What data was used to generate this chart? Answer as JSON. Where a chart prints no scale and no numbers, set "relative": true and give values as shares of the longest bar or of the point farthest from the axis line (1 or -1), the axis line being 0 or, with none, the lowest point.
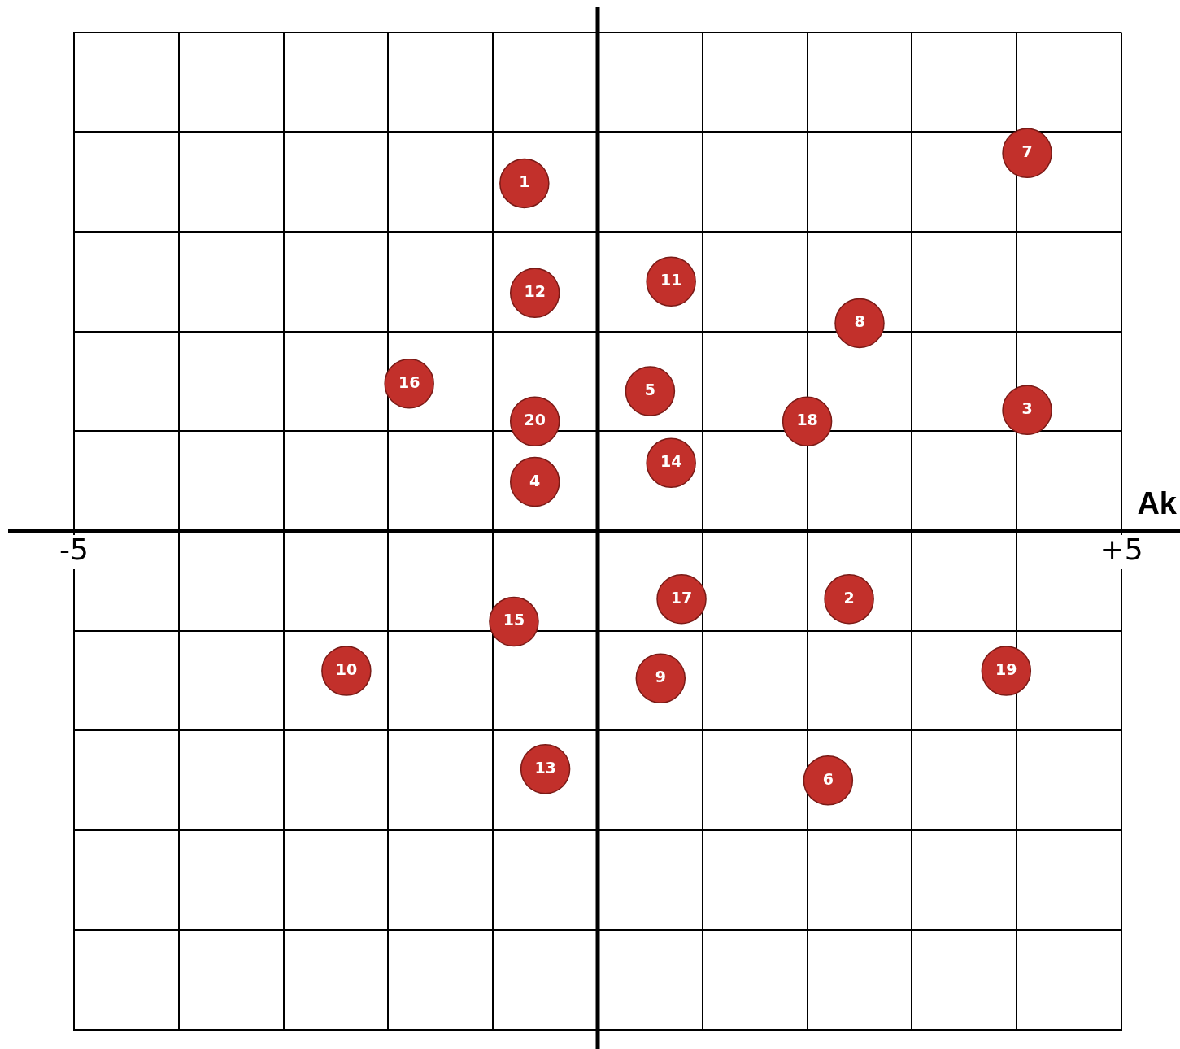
{
  "chart_data": {
    "type": "scatter",
    "xlabel": "Ak",
    "relative": true,
    "xlim": [
      -5,
      5
    ],
    "xticks": [
      {
        "value": -5,
        "label": "-5"
      },
      {
        "value": -4,
        "label": null
      },
      {
        "value": -3,
        "label": null
      },
      {
        "value": -2,
        "label": null
      },
      {
        "value": -1,
        "label": null
      },
      {
        "value": 0,
        "label": null
      },
      {
        "value": 1,
        "label": null
      },
      {
        "value": 2,
        "label": null
      },
      {
        "value": 3,
        "label": null
      },
      {
        "value": 4,
        "label": null
      },
      {
        "value": 5,
        "label": "+5"
      }
    ],
    "tick_labels": "x",
    "grid": true,
    "legend": false,
    "marker": "circle",
    "series": [
      {
        "color": "#c2302b",
        "x": [
          -0.7,
          2.4,
          4.1,
          -0.6,
          0.5,
          2.2,
          4.1,
          2.5,
          0.6,
          -2.4,
          0.7,
          -0.6,
          -0.5,
          0.7,
          -0.8,
          -1.8,
          0.8,
          2.0,
          3.9,
          -0.6
        ],
        "values": [
          0.92,
          -0.18,
          0.32,
          0.13,
          0.37,
          -0.66,
          1,
          0.55,
          -0.39,
          -0.37,
          0.66,
          0.63,
          -0.63,
          0.18,
          -0.24,
          0.39,
          -0.18,
          0.29,
          -0.37,
          0.29
        ]
      }
    ],
    "annotations": [
      {
        "text": "1",
        "x": -0.7,
        "y": 0.92
      },
      {
        "text": "2",
        "x": 2.4,
        "y": -0.18
      },
      {
        "text": "3",
        "x": 4.1,
        "y": 0.32
      },
      {
        "text": "4",
        "x": -0.6,
        "y": 0.13
      },
      {
        "text": "5",
        "x": 0.5,
        "y": 0.37
      },
      {
        "text": "6",
        "x": 2.2,
        "y": -0.66
      },
      {
        "text": "7",
        "x": 4.1,
        "y": 1
      },
      {
        "text": "8",
        "x": 2.5,
        "y": 0.55
      },
      {
        "text": "9",
        "x": 0.6,
        "y": -0.39
      },
      {
        "text": "10",
        "x": -2.4,
        "y": -0.37
      },
      {
        "text": "11",
        "x": 0.7,
        "y": 0.66
      },
      {
        "text": "12",
        "x": -0.6,
        "y": 0.63
      },
      {
        "text": "13",
        "x": -0.5,
        "y": -0.63
      },
      {
        "text": "14",
        "x": 0.7,
        "y": 0.18
      },
      {
        "text": "15",
        "x": -0.8,
        "y": -0.24
      },
      {
        "text": "16",
        "x": -1.8,
        "y": 0.39
      },
      {
        "text": "17",
        "x": 0.8,
        "y": -0.18
      },
      {
        "text": "18",
        "x": 2.0,
        "y": 0.29
      },
      {
        "text": "19",
        "x": 3.9,
        "y": -0.37
      },
      {
        "text": "20",
        "x": -0.6,
        "y": 0.29
      }
    ]
  }
}
